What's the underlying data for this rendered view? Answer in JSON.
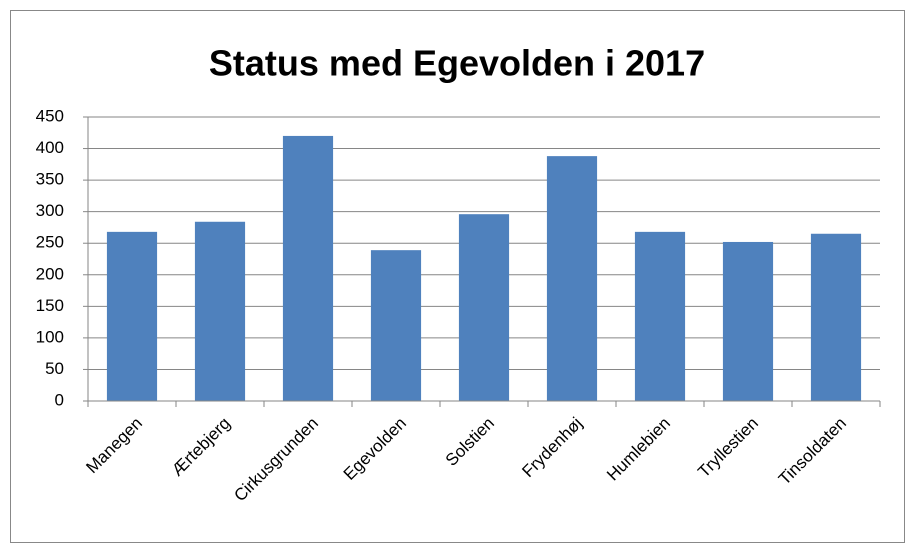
{
  "chart_data": {
    "type": "bar",
    "title": "Status med Egevolden i 2017",
    "categories": [
      "Manegen",
      "Ærtebjerg",
      "Cirkusgrunden",
      "Egevolden",
      "Solstien",
      "Frydenhøj",
      "Humlebien",
      "Tryllestien",
      "Tinsoldaten"
    ],
    "values": [
      268,
      284,
      420,
      239,
      296,
      388,
      268,
      252,
      265
    ],
    "color": "#4f81bd",
    "ylim": [
      0,
      450
    ],
    "yticks": [
      0,
      50,
      100,
      150,
      200,
      250,
      300,
      350,
      400,
      450
    ],
    "grid": true
  }
}
